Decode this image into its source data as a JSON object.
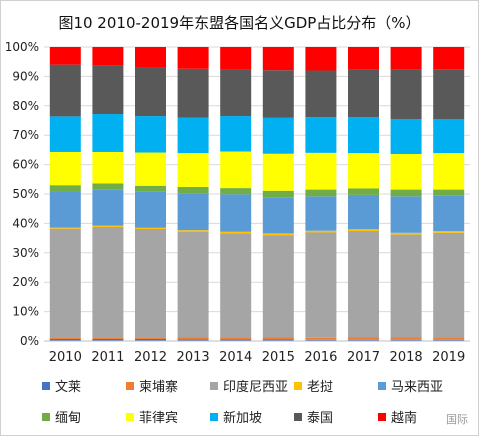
{
  "chart_data": {
    "type": "bar",
    "stacked": true,
    "title": "图10 2010-2019年东盟各国名义GDP占比分布（%）",
    "categories": [
      "2010",
      "2011",
      "2012",
      "2013",
      "2014",
      "2015",
      "2016",
      "2017",
      "2018",
      "2019"
    ],
    "y_ticks": [
      "0%",
      "10%",
      "20%",
      "30%",
      "40%",
      "50%",
      "60%",
      "70%",
      "80%",
      "90%",
      "100%"
    ],
    "ylim": [
      0,
      100
    ],
    "grid": true,
    "legend_position": "bottom",
    "series": [
      {
        "name": "文莱",
        "color": "#4472C4",
        "values": [
          0.7,
          0.7,
          0.7,
          0.6,
          0.6,
          0.5,
          0.4,
          0.4,
          0.4,
          0.4
        ]
      },
      {
        "name": "柬埔寨",
        "color": "#ED7D31",
        "values": [
          0.6,
          0.6,
          0.6,
          0.6,
          0.7,
          0.7,
          0.7,
          0.8,
          0.8,
          0.9
        ]
      },
      {
        "name": "印度尼西亚",
        "color": "#A5A5A5",
        "values": [
          36.9,
          37.5,
          36.8,
          36.0,
          35.2,
          34.8,
          35.8,
          36.2,
          35.0,
          35.5
        ]
      },
      {
        "name": "老挝",
        "color": "#FFC000",
        "values": [
          0.4,
          0.4,
          0.4,
          0.5,
          0.5,
          0.6,
          0.6,
          0.6,
          0.6,
          0.6
        ]
      },
      {
        "name": "马来西亚",
        "color": "#5B9BD5",
        "values": [
          12.4,
          12.4,
          12.3,
          12.4,
          12.7,
          12.3,
          11.7,
          11.7,
          12.4,
          12.0
        ]
      },
      {
        "name": "缅甸",
        "color": "#70AD47",
        "values": [
          2.0,
          2.0,
          2.0,
          2.3,
          2.1,
          2.2,
          2.3,
          2.2,
          2.3,
          2.1
        ]
      },
      {
        "name": "菲律宾",
        "color": "#FFFF00",
        "values": [
          11.3,
          10.7,
          11.3,
          11.5,
          12.4,
          12.6,
          12.5,
          12.0,
          12.1,
          12.4
        ]
      },
      {
        "name": "新加坡",
        "color": "#00B0F0",
        "values": [
          12.1,
          12.9,
          12.4,
          12.1,
          12.0,
          12.2,
          12.1,
          12.2,
          11.9,
          11.5
        ]
      },
      {
        "name": "泰国",
        "color": "#595959",
        "values": [
          17.6,
          16.4,
          16.5,
          16.6,
          15.8,
          16.2,
          15.9,
          16.4,
          16.8,
          17.0
        ]
      },
      {
        "name": "越南",
        "color": "#FF0000",
        "values": [
          6.0,
          6.4,
          7.0,
          7.4,
          7.6,
          7.9,
          8.0,
          7.5,
          7.7,
          7.6
        ]
      }
    ]
  },
  "watermark": "国际"
}
